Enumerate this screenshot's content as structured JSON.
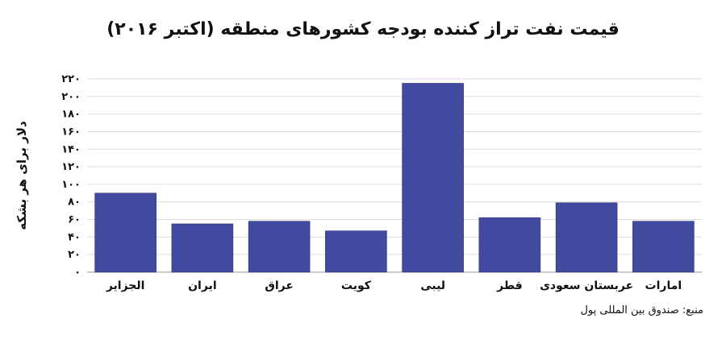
{
  "title": "قیمت نفت تراز کننده بودجه کشورهای منطقه (اکتبر ۲۰۱۶)",
  "source": "منبع: صندوق بین المللی پول",
  "chart_data": {
    "type": "bar",
    "title": "قیمت نفت تراز کننده بودجه کشورهای منطقه (اکتبر ۲۰۱۶)",
    "ylabel": "دلار برای هر بشکه",
    "xlabel": "",
    "ylim": [
      0,
      220
    ],
    "yticks": [
      0,
      20,
      40,
      60,
      80,
      100,
      120,
      140,
      160,
      180,
      200,
      220
    ],
    "ytick_labels": [
      "۰",
      "۲۰",
      "۴۰",
      "۶۰",
      "۸۰",
      "۱۰۰",
      "۱۲۰",
      "۱۴۰",
      "۱۶۰",
      "۱۸۰",
      "۲۰۰",
      "۲۲۰"
    ],
    "grid": true,
    "categories": [
      "الجزایر",
      "ایران",
      "عراق",
      "کویت",
      "لیبی",
      "قطر",
      "عربستان سعودی",
      "امارات"
    ],
    "values": [
      90,
      55,
      58,
      47,
      215,
      62,
      79,
      58
    ],
    "bar_color": "#424a9f"
  }
}
